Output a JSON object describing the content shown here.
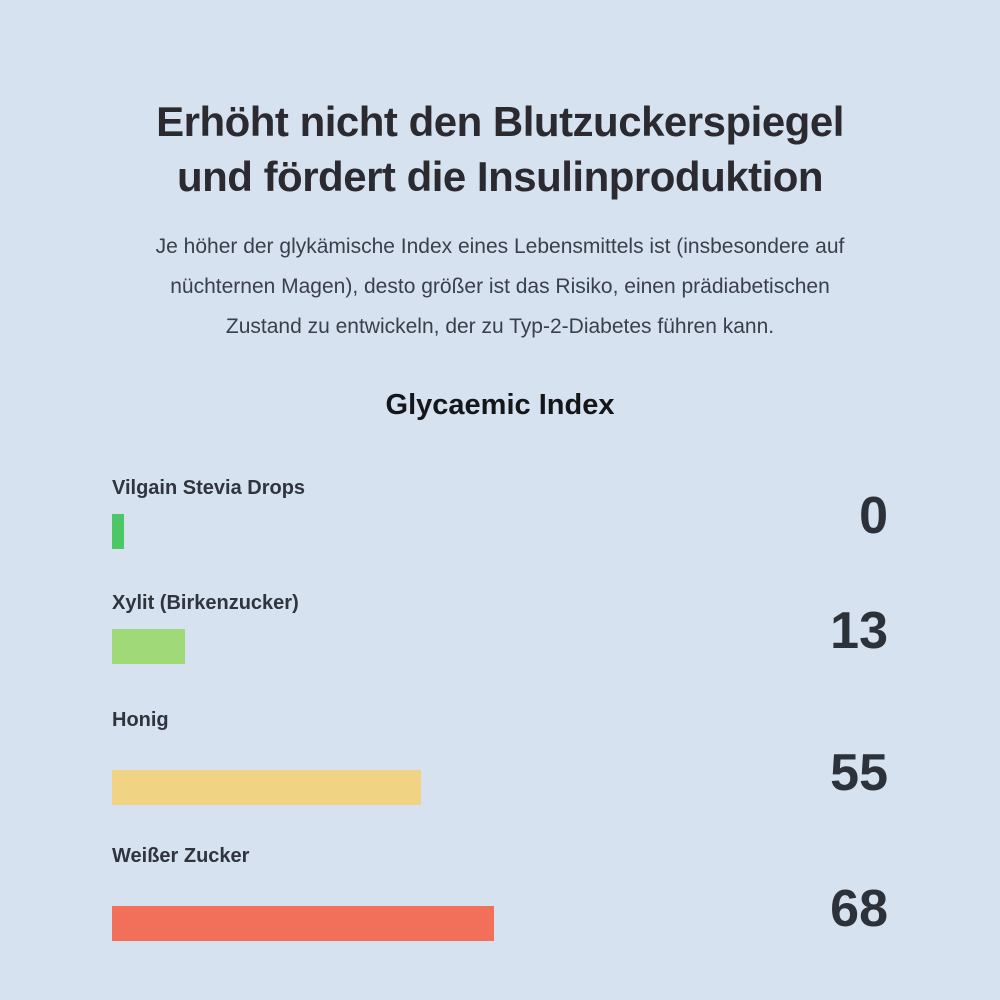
{
  "header": {
    "title_line1": "Erhöht nicht den Blutzuckerspiegel",
    "title_line2": "und fördert die Insulinproduktion",
    "subtitle_line1": "Je höher der glykämische Index eines Lebensmittels ist (insbesondere auf",
    "subtitle_line2": "nüchternen Magen), desto größer ist das Risiko, einen prädiabetischen",
    "subtitle_line3": "Zustand zu entwickeln, der zu Typ-2-Diabetes führen kann."
  },
  "chart_data": {
    "type": "bar",
    "orientation": "horizontal",
    "title": "Glycaemic Index",
    "categories": [
      "Vilgain Stevia Drops",
      "Xylit (Birkenzucker)",
      "Honig",
      "Weißer Zucker"
    ],
    "values": [
      0,
      13,
      55,
      68
    ],
    "value_labels": [
      "0",
      "13",
      "55",
      "68"
    ],
    "colors": [
      "#4dc766",
      "#a0d977",
      "#f0d383",
      "#f2705a"
    ],
    "xlim": [
      0,
      68
    ],
    "background_color": "#d7e2f1",
    "grid": false,
    "legend": false
  }
}
